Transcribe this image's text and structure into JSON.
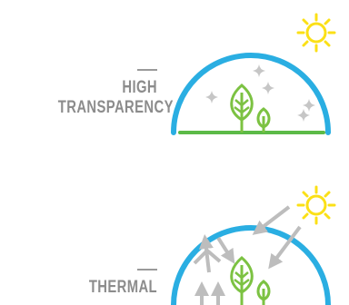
{
  "panels": [
    {
      "label_lines": [
        "HIGH",
        "TRANSPARENCY"
      ]
    },
    {
      "label_lines": [
        "THERMAL"
      ]
    }
  ],
  "colors": {
    "dome": "#2aaee2",
    "ground": "#5cba47",
    "plant": "#7cc242",
    "sun": "#fbe016",
    "sparkle": "#c6c6c6",
    "arrow": "#bdbdbd",
    "label": "#8c8c8c"
  },
  "icons": [
    "sun-icon",
    "sparkle-icon",
    "plant-icon",
    "heat-arrow-icon"
  ]
}
